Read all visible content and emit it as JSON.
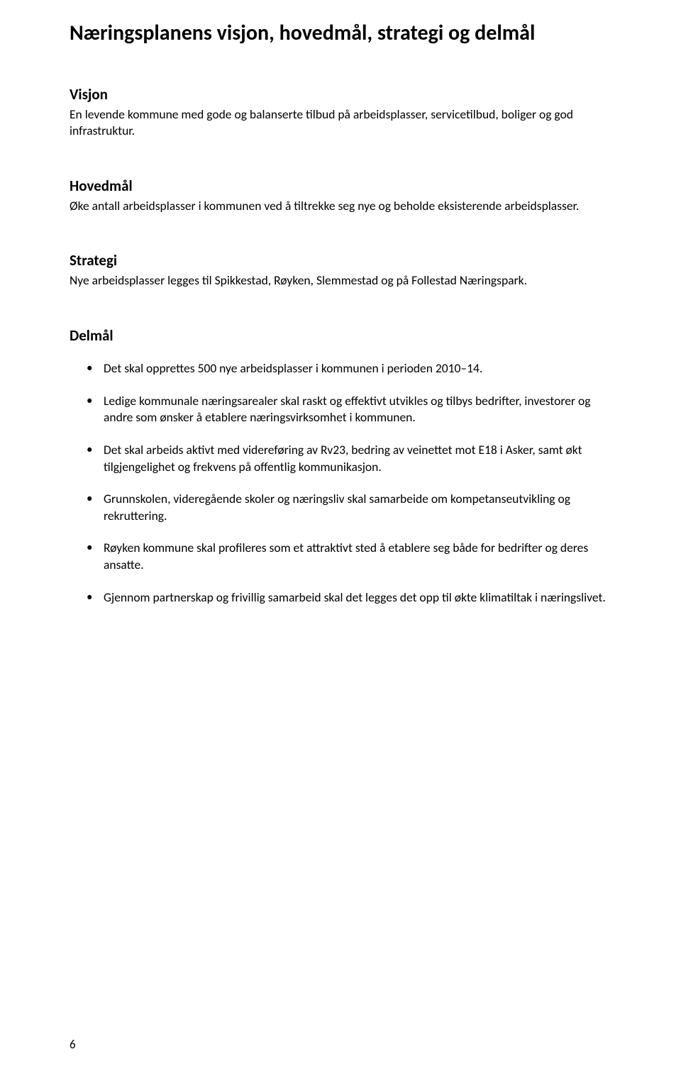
{
  "title": "Næringsplanens visjon, hovedmål, strategi og delmål",
  "sections": {
    "visjon": {
      "heading": "Visjon",
      "body": "En levende kommune med gode og balanserte tilbud på arbeidsplasser, servicetilbud, boliger og god infrastruktur."
    },
    "hovedmal": {
      "heading": "Hovedmål",
      "body": "Øke antall arbeidsplasser i kommunen ved å tiltrekke seg nye og beholde eksisterende arbeidsplasser."
    },
    "strategi": {
      "heading": "Strategi",
      "body": "Nye arbeidsplasser  legges til  Spikkestad, Røyken, Slemmestad og på Follestad Næringspark."
    },
    "delmal": {
      "heading": "Delmål",
      "items": [
        "Det skal opprettes 500 nye arbeidsplasser i kommunen i perioden 2010–14.",
        "Ledige kommunale næringsarealer skal raskt og effektivt utvikles og tilbys bedrifter, investorer og andre som ønsker å etablere næringsvirksomhet i kommunen.",
        "Det skal arbeids aktivt med videreføring av Rv23, bedring av veinettet mot E18 i Asker, samt økt tilgjengelighet og frekvens på offentlig kommunikasjon.",
        "Grunnskolen, videregående skoler og næringsliv skal samarbeide om kompetanseutvikling og rekruttering.",
        "Røyken kommune skal profileres som et attraktivt sted å etablere seg både for bedrifter og deres ansatte.",
        "Gjennom partnerskap og frivillig samarbeid skal det legges det opp til økte klimatiltak i næringslivet."
      ]
    }
  },
  "pageNumber": "6"
}
